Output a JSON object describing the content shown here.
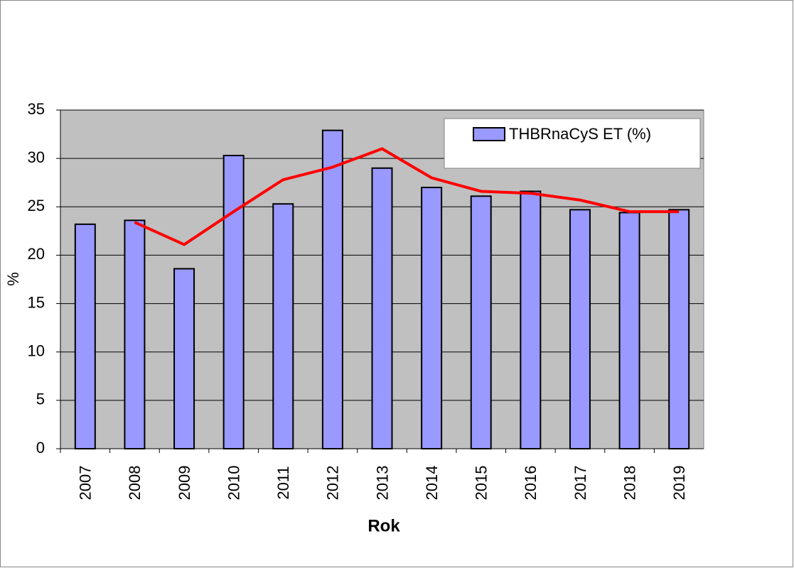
{
  "chart_data": {
    "type": "bar",
    "x_label": "Rok",
    "y_label": "%",
    "categories": [
      "2007",
      "2008",
      "2009",
      "2010",
      "2011",
      "2012",
      "2013",
      "2014",
      "2015",
      "2016",
      "2017",
      "2018",
      "2019"
    ],
    "series": [
      {
        "name": "THBRnaCyS ET (%)",
        "type": "bar",
        "color": "#9999ff",
        "values": [
          23.2,
          23.6,
          18.6,
          30.3,
          25.3,
          32.9,
          29.0,
          27.0,
          26.1,
          26.6,
          24.7,
          24.4,
          24.7
        ]
      },
      {
        "type": "line",
        "color": "#ff0000",
        "values": [
          null,
          23.4,
          21.1,
          24.5,
          27.8,
          29.1,
          31.0,
          28.0,
          26.6,
          26.4,
          25.7,
          24.5,
          24.5
        ]
      }
    ],
    "ylim": [
      0,
      35
    ],
    "yticks": [
      0,
      5,
      10,
      15,
      20,
      25,
      30,
      35
    ],
    "grid": true,
    "legend": "upper right"
  }
}
